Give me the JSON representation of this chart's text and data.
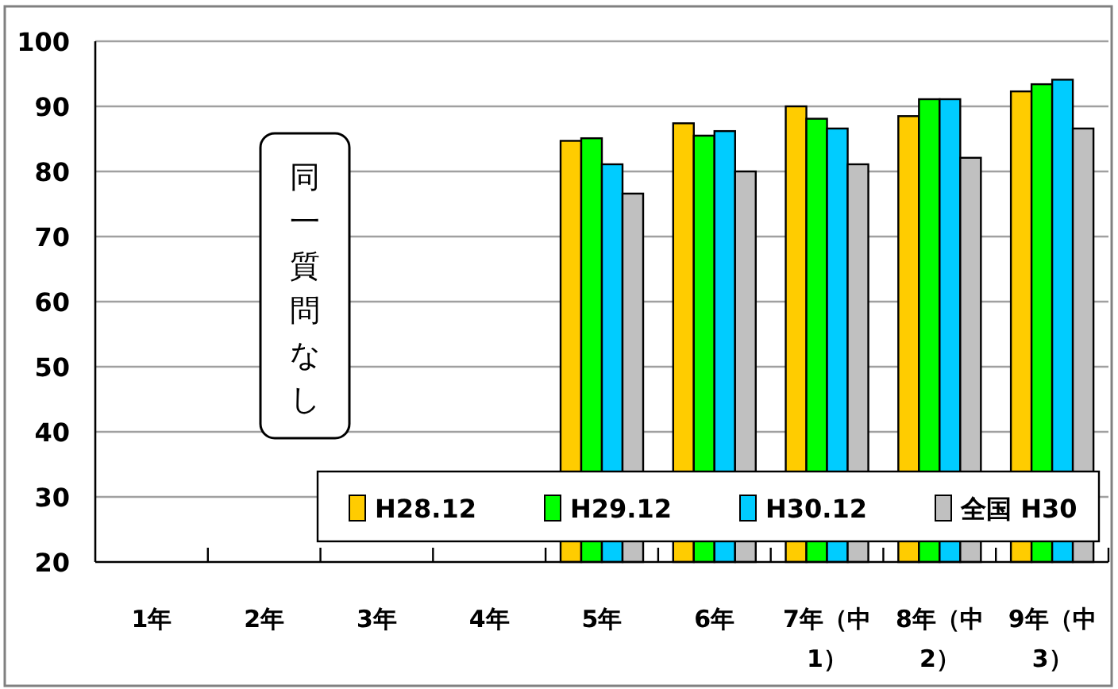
{
  "chart_data": {
    "type": "bar",
    "categories": [
      "1年",
      "2年",
      "3年",
      "4年",
      "5年",
      "6年",
      "7年（中1）",
      "8年（中2）",
      "9年（中3）"
    ],
    "series": [
      {
        "name": "H28.12",
        "color": "#ffcc00",
        "values": [
          null,
          null,
          null,
          null,
          84.7,
          87.4,
          90.0,
          88.5,
          92.3
        ]
      },
      {
        "name": "H29.12",
        "color": "#00ff00",
        "values": [
          null,
          null,
          null,
          null,
          85.1,
          85.5,
          88.1,
          91.1,
          93.4
        ]
      },
      {
        "name": "H30.12",
        "color": "#00ccff",
        "values": [
          null,
          null,
          null,
          null,
          81.1,
          86.2,
          86.6,
          91.1,
          94.1
        ]
      },
      {
        "name": "全国 H30",
        "color": "#c0c0c0",
        "values": [
          null,
          null,
          null,
          null,
          76.6,
          80.0,
          81.1,
          82.1,
          86.6
        ]
      }
    ],
    "ylim": [
      20,
      100
    ],
    "yticks": [
      20,
      30,
      40,
      50,
      60,
      70,
      80,
      90,
      100
    ],
    "grid": "y",
    "legend": "bottom right",
    "annotations": [
      "同一質問なし"
    ]
  }
}
